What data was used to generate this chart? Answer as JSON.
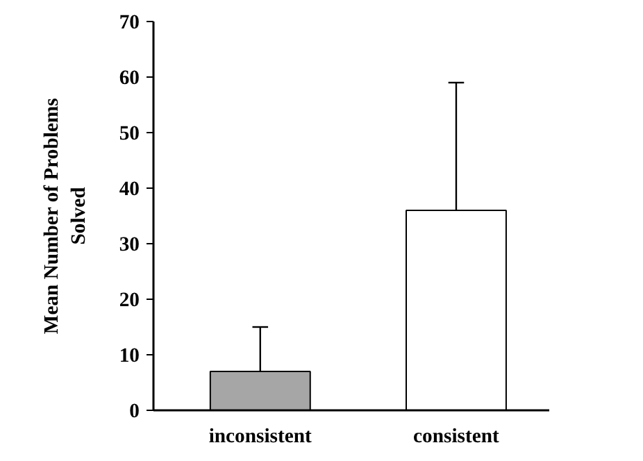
{
  "chart_data": {
    "type": "bar",
    "ylabel": "Mean Number of Problems\nSolved",
    "categories": [
      "inconsistent",
      "consistent"
    ],
    "values": [
      7,
      36
    ],
    "colors": [
      "#a6a6a6",
      "#ffffff"
    ],
    "errors": [
      [
        7,
        15
      ],
      [
        36,
        59
      ]
    ],
    "ylim": [
      0,
      70
    ],
    "yticks": [
      0,
      10,
      20,
      30,
      40,
      50,
      60,
      70
    ],
    "grid": false
  }
}
